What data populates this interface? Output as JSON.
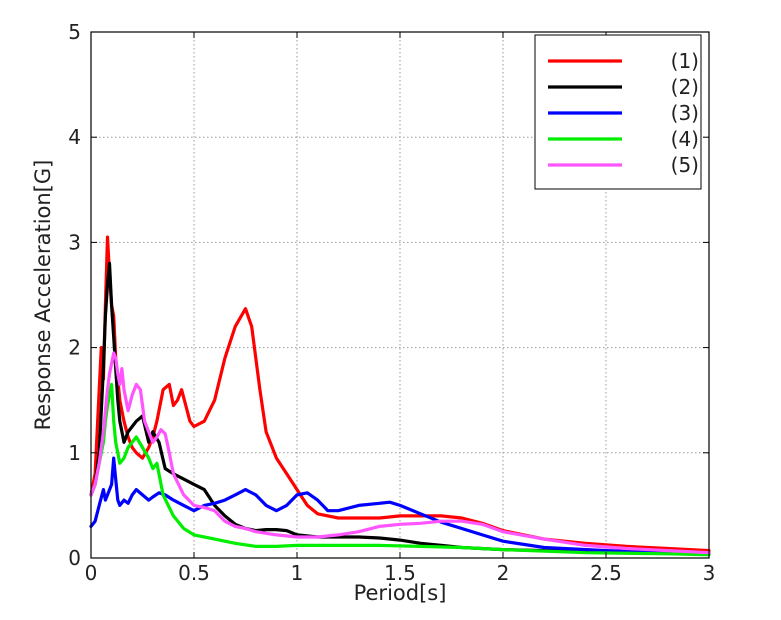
{
  "chart_data": {
    "type": "line",
    "xlabel": "Period[s]",
    "ylabel": "Response Acceleration[G]",
    "xlim": [
      0,
      3
    ],
    "ylim": [
      0,
      5
    ],
    "xticks": [
      0,
      0.5,
      1,
      1.5,
      2,
      2.5,
      3
    ],
    "xtick_labels": [
      "0",
      "0.5",
      "1",
      "1.5",
      "2",
      "2.5",
      "3"
    ],
    "yticks": [
      0,
      1,
      2,
      3,
      4,
      5
    ],
    "ytick_labels": [
      "0",
      "1",
      "2",
      "3",
      "4",
      "5"
    ],
    "grid": true,
    "legend_position": "top-right",
    "series": [
      {
        "name": "(1)",
        "color": "#ff0000",
        "x": [
          0,
          0.02,
          0.04,
          0.05,
          0.06,
          0.07,
          0.08,
          0.09,
          0.1,
          0.11,
          0.12,
          0.13,
          0.14,
          0.16,
          0.18,
          0.2,
          0.22,
          0.25,
          0.28,
          0.3,
          0.32,
          0.35,
          0.38,
          0.4,
          0.42,
          0.44,
          0.46,
          0.48,
          0.5,
          0.55,
          0.6,
          0.65,
          0.7,
          0.75,
          0.78,
          0.82,
          0.85,
          0.9,
          0.95,
          1.0,
          1.05,
          1.1,
          1.2,
          1.3,
          1.4,
          1.5,
          1.6,
          1.7,
          1.8,
          1.9,
          2.0,
          2.2,
          2.4,
          2.6,
          2.8,
          3.0
        ],
        "y": [
          0.6,
          0.8,
          1.6,
          2.0,
          1.7,
          2.4,
          3.05,
          2.7,
          2.4,
          2.3,
          1.9,
          1.7,
          1.5,
          1.3,
          1.15,
          1.05,
          1.0,
          0.95,
          1.05,
          1.15,
          1.3,
          1.6,
          1.65,
          1.45,
          1.5,
          1.6,
          1.45,
          1.3,
          1.25,
          1.3,
          1.5,
          1.9,
          2.2,
          2.37,
          2.2,
          1.6,
          1.2,
          0.95,
          0.8,
          0.65,
          0.5,
          0.42,
          0.38,
          0.38,
          0.38,
          0.4,
          0.4,
          0.4,
          0.38,
          0.33,
          0.26,
          0.18,
          0.14,
          0.11,
          0.09,
          0.07
        ]
      },
      {
        "name": "(2)",
        "color": "#000000",
        "x": [
          0,
          0.02,
          0.04,
          0.06,
          0.07,
          0.08,
          0.09,
          0.1,
          0.11,
          0.12,
          0.13,
          0.14,
          0.16,
          0.18,
          0.2,
          0.22,
          0.25,
          0.28,
          0.3,
          0.33,
          0.36,
          0.4,
          0.45,
          0.5,
          0.55,
          0.6,
          0.65,
          0.7,
          0.75,
          0.8,
          0.85,
          0.9,
          0.95,
          1.0,
          1.1,
          1.2,
          1.3,
          1.4,
          1.5,
          1.6,
          1.7,
          1.8,
          2.0,
          2.2,
          2.5,
          2.8,
          3.0
        ],
        "y": [
          0.6,
          0.7,
          1.0,
          1.8,
          2.3,
          2.6,
          2.8,
          2.4,
          2.1,
          1.8,
          1.5,
          1.3,
          1.1,
          1.2,
          1.25,
          1.3,
          1.35,
          1.1,
          1.2,
          1.1,
          0.85,
          0.8,
          0.75,
          0.7,
          0.65,
          0.5,
          0.4,
          0.32,
          0.28,
          0.26,
          0.27,
          0.27,
          0.26,
          0.22,
          0.2,
          0.2,
          0.2,
          0.19,
          0.17,
          0.14,
          0.12,
          0.1,
          0.08,
          0.07,
          0.06,
          0.05,
          0.05
        ]
      },
      {
        "name": "(3)",
        "color": "#0000ff",
        "x": [
          0,
          0.02,
          0.04,
          0.06,
          0.07,
          0.08,
          0.1,
          0.11,
          0.12,
          0.13,
          0.14,
          0.16,
          0.18,
          0.2,
          0.22,
          0.25,
          0.28,
          0.3,
          0.33,
          0.36,
          0.4,
          0.45,
          0.5,
          0.55,
          0.6,
          0.65,
          0.7,
          0.75,
          0.8,
          0.85,
          0.9,
          0.95,
          1.0,
          1.05,
          1.1,
          1.15,
          1.2,
          1.3,
          1.4,
          1.45,
          1.5,
          1.6,
          1.7,
          1.8,
          1.9,
          2.0,
          2.2,
          2.5,
          2.8,
          3.0
        ],
        "y": [
          0.3,
          0.35,
          0.5,
          0.65,
          0.55,
          0.6,
          0.7,
          0.95,
          0.75,
          0.55,
          0.5,
          0.55,
          0.52,
          0.6,
          0.65,
          0.6,
          0.55,
          0.58,
          0.62,
          0.6,
          0.55,
          0.5,
          0.45,
          0.5,
          0.52,
          0.55,
          0.6,
          0.65,
          0.6,
          0.5,
          0.45,
          0.5,
          0.6,
          0.62,
          0.55,
          0.45,
          0.45,
          0.5,
          0.52,
          0.53,
          0.5,
          0.42,
          0.34,
          0.28,
          0.22,
          0.16,
          0.1,
          0.07,
          0.05,
          0.04
        ]
      },
      {
        "name": "(4)",
        "color": "#00ee00",
        "x": [
          0,
          0.02,
          0.04,
          0.05,
          0.06,
          0.07,
          0.08,
          0.09,
          0.1,
          0.11,
          0.12,
          0.13,
          0.14,
          0.16,
          0.18,
          0.2,
          0.22,
          0.25,
          0.28,
          0.3,
          0.32,
          0.35,
          0.4,
          0.45,
          0.5,
          0.55,
          0.6,
          0.7,
          0.8,
          0.9,
          1.0,
          1.2,
          1.4,
          1.6,
          1.8,
          2.0,
          2.4,
          2.8,
          3.0
        ],
        "y": [
          0.6,
          0.7,
          0.9,
          1.0,
          1.1,
          1.3,
          1.45,
          1.55,
          1.65,
          1.3,
          1.1,
          1.0,
          0.9,
          0.95,
          1.05,
          1.1,
          1.15,
          1.05,
          0.95,
          0.85,
          0.9,
          0.6,
          0.4,
          0.28,
          0.22,
          0.2,
          0.18,
          0.14,
          0.11,
          0.11,
          0.12,
          0.12,
          0.12,
          0.11,
          0.1,
          0.08,
          0.05,
          0.04,
          0.03
        ]
      },
      {
        "name": "(5)",
        "color": "#ff55ff",
        "x": [
          0,
          0.02,
          0.04,
          0.06,
          0.08,
          0.09,
          0.1,
          0.11,
          0.12,
          0.13,
          0.14,
          0.15,
          0.16,
          0.18,
          0.2,
          0.22,
          0.24,
          0.26,
          0.28,
          0.3,
          0.32,
          0.34,
          0.36,
          0.38,
          0.4,
          0.45,
          0.5,
          0.55,
          0.6,
          0.65,
          0.7,
          0.75,
          0.8,
          0.9,
          1.0,
          1.1,
          1.2,
          1.3,
          1.4,
          1.5,
          1.6,
          1.7,
          1.8,
          1.9,
          2.0,
          2.2,
          2.4,
          2.6,
          2.8,
          3.0
        ],
        "y": [
          0.6,
          0.7,
          0.9,
          1.2,
          1.6,
          1.75,
          1.85,
          1.95,
          1.9,
          1.75,
          1.65,
          1.8,
          1.6,
          1.4,
          1.55,
          1.65,
          1.6,
          1.3,
          1.2,
          1.1,
          1.15,
          1.22,
          1.18,
          1.0,
          0.8,
          0.6,
          0.5,
          0.48,
          0.45,
          0.35,
          0.3,
          0.28,
          0.25,
          0.22,
          0.2,
          0.2,
          0.22,
          0.25,
          0.3,
          0.32,
          0.33,
          0.35,
          0.35,
          0.32,
          0.25,
          0.18,
          0.12,
          0.09,
          0.07,
          0.05
        ]
      }
    ]
  }
}
